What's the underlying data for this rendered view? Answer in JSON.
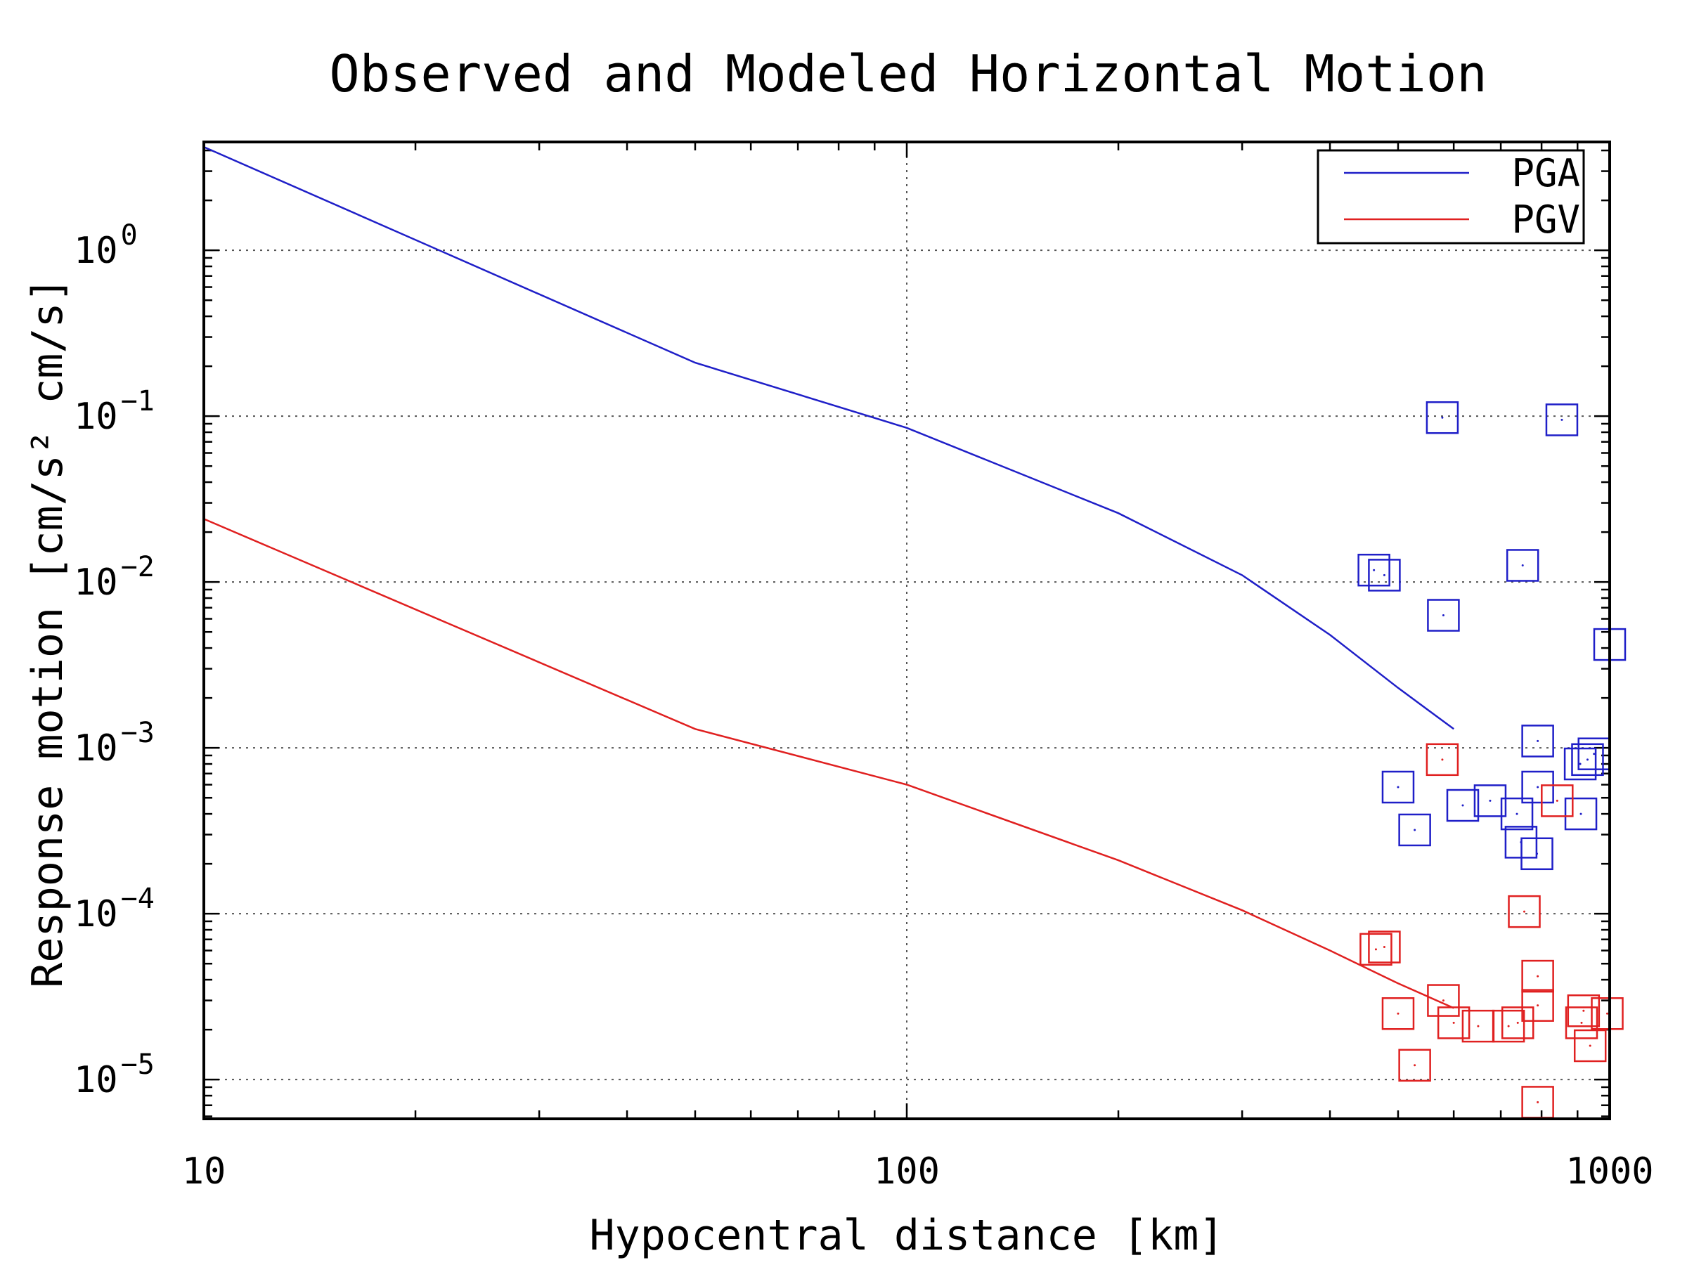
{
  "chart_data": {
    "type": "scatter",
    "title": "Observed and Modeled Horizontal Motion",
    "xlabel": "Hypocentral distance [km]",
    "ylabel": "Response motion [cm/s² cm/s]",
    "xscale": "log",
    "yscale": "log",
    "xlim": [
      10,
      1000
    ],
    "ylim": [
      5.8e-06,
      4.5
    ],
    "x_ticks": [
      {
        "value": 10,
        "label": "10"
      },
      {
        "value": 100,
        "label": "100"
      },
      {
        "value": 1000,
        "label": "1000"
      }
    ],
    "y_ticks": [
      {
        "value": 1,
        "base": "10",
        "exp": "0"
      },
      {
        "value": 0.1,
        "base": "10",
        "exp": "−1"
      },
      {
        "value": 0.01,
        "base": "10",
        "exp": "−2"
      },
      {
        "value": 0.001,
        "base": "10",
        "exp": "−3"
      },
      {
        "value": 0.0001,
        "base": "10",
        "exp": "−4"
      },
      {
        "value": 1e-05,
        "base": "10",
        "exp": "−5"
      }
    ],
    "grid": true,
    "legend": {
      "position": "top-right",
      "entries": [
        {
          "label": "PGA",
          "color": "#1f1fc8"
        },
        {
          "label": "PGV",
          "color": "#e02020"
        }
      ]
    },
    "model_lines": [
      {
        "name": "PGA",
        "color": "#1f1fc8",
        "points": [
          [
            10,
            4.2
          ],
          [
            50,
            0.21
          ],
          [
            100,
            0.085
          ],
          [
            200,
            0.026
          ],
          [
            300,
            0.011
          ],
          [
            400,
            0.0048
          ],
          [
            500,
            0.0023
          ],
          [
            600,
            0.0013
          ]
        ]
      },
      {
        "name": "PGV",
        "color": "#e02020",
        "points": [
          [
            10,
            0.024
          ],
          [
            50,
            0.0013
          ],
          [
            100,
            0.0006
          ],
          [
            200,
            0.00021
          ],
          [
            300,
            0.000105
          ],
          [
            400,
            6e-05
          ],
          [
            500,
            3.8e-05
          ],
          [
            600,
            2.7e-05
          ]
        ]
      }
    ],
    "observed": [
      {
        "name": "PGA",
        "color": "#1f1fc8",
        "points": [
          [
            578,
            0.098
          ],
          [
            855,
            0.095
          ],
          [
            462,
            0.0118
          ],
          [
            478,
            0.011
          ],
          [
            752,
            0.0126
          ],
          [
            580,
            0.0063
          ],
          [
            1000,
            0.0042
          ],
          [
            790,
            0.0011
          ],
          [
            950,
            0.00092
          ],
          [
            930,
            0.00085
          ],
          [
            908,
            0.0008
          ],
          [
            790,
            0.00058
          ],
          [
            500,
            0.00058
          ],
          [
            618,
            0.00045
          ],
          [
            676,
            0.00048
          ],
          [
            738,
            0.0004
          ],
          [
            910,
            0.0004
          ],
          [
            528,
            0.00032
          ],
          [
            748,
            0.00027
          ],
          [
            788,
            0.00023
          ]
        ]
      },
      {
        "name": "PGV",
        "color": "#e02020",
        "points": [
          [
            578,
            0.00085
          ],
          [
            842,
            0.00048
          ],
          [
            756,
            0.000103
          ],
          [
            465,
            6.1e-05
          ],
          [
            478,
            6.3e-05
          ],
          [
            790,
            4.2e-05
          ],
          [
            790,
            2.8e-05
          ],
          [
            580,
            3e-05
          ],
          [
            500,
            2.5e-05
          ],
          [
            918,
            2.6e-05
          ],
          [
            992,
            2.5e-05
          ],
          [
            600,
            2.2e-05
          ],
          [
            650,
            2.1e-05
          ],
          [
            718,
            2.1e-05
          ],
          [
            740,
            2.2e-05
          ],
          [
            912,
            2.2e-05
          ],
          [
            938,
            1.6e-05
          ],
          [
            528,
            1.22e-05
          ],
          [
            790,
            7.3e-06
          ]
        ]
      }
    ]
  }
}
